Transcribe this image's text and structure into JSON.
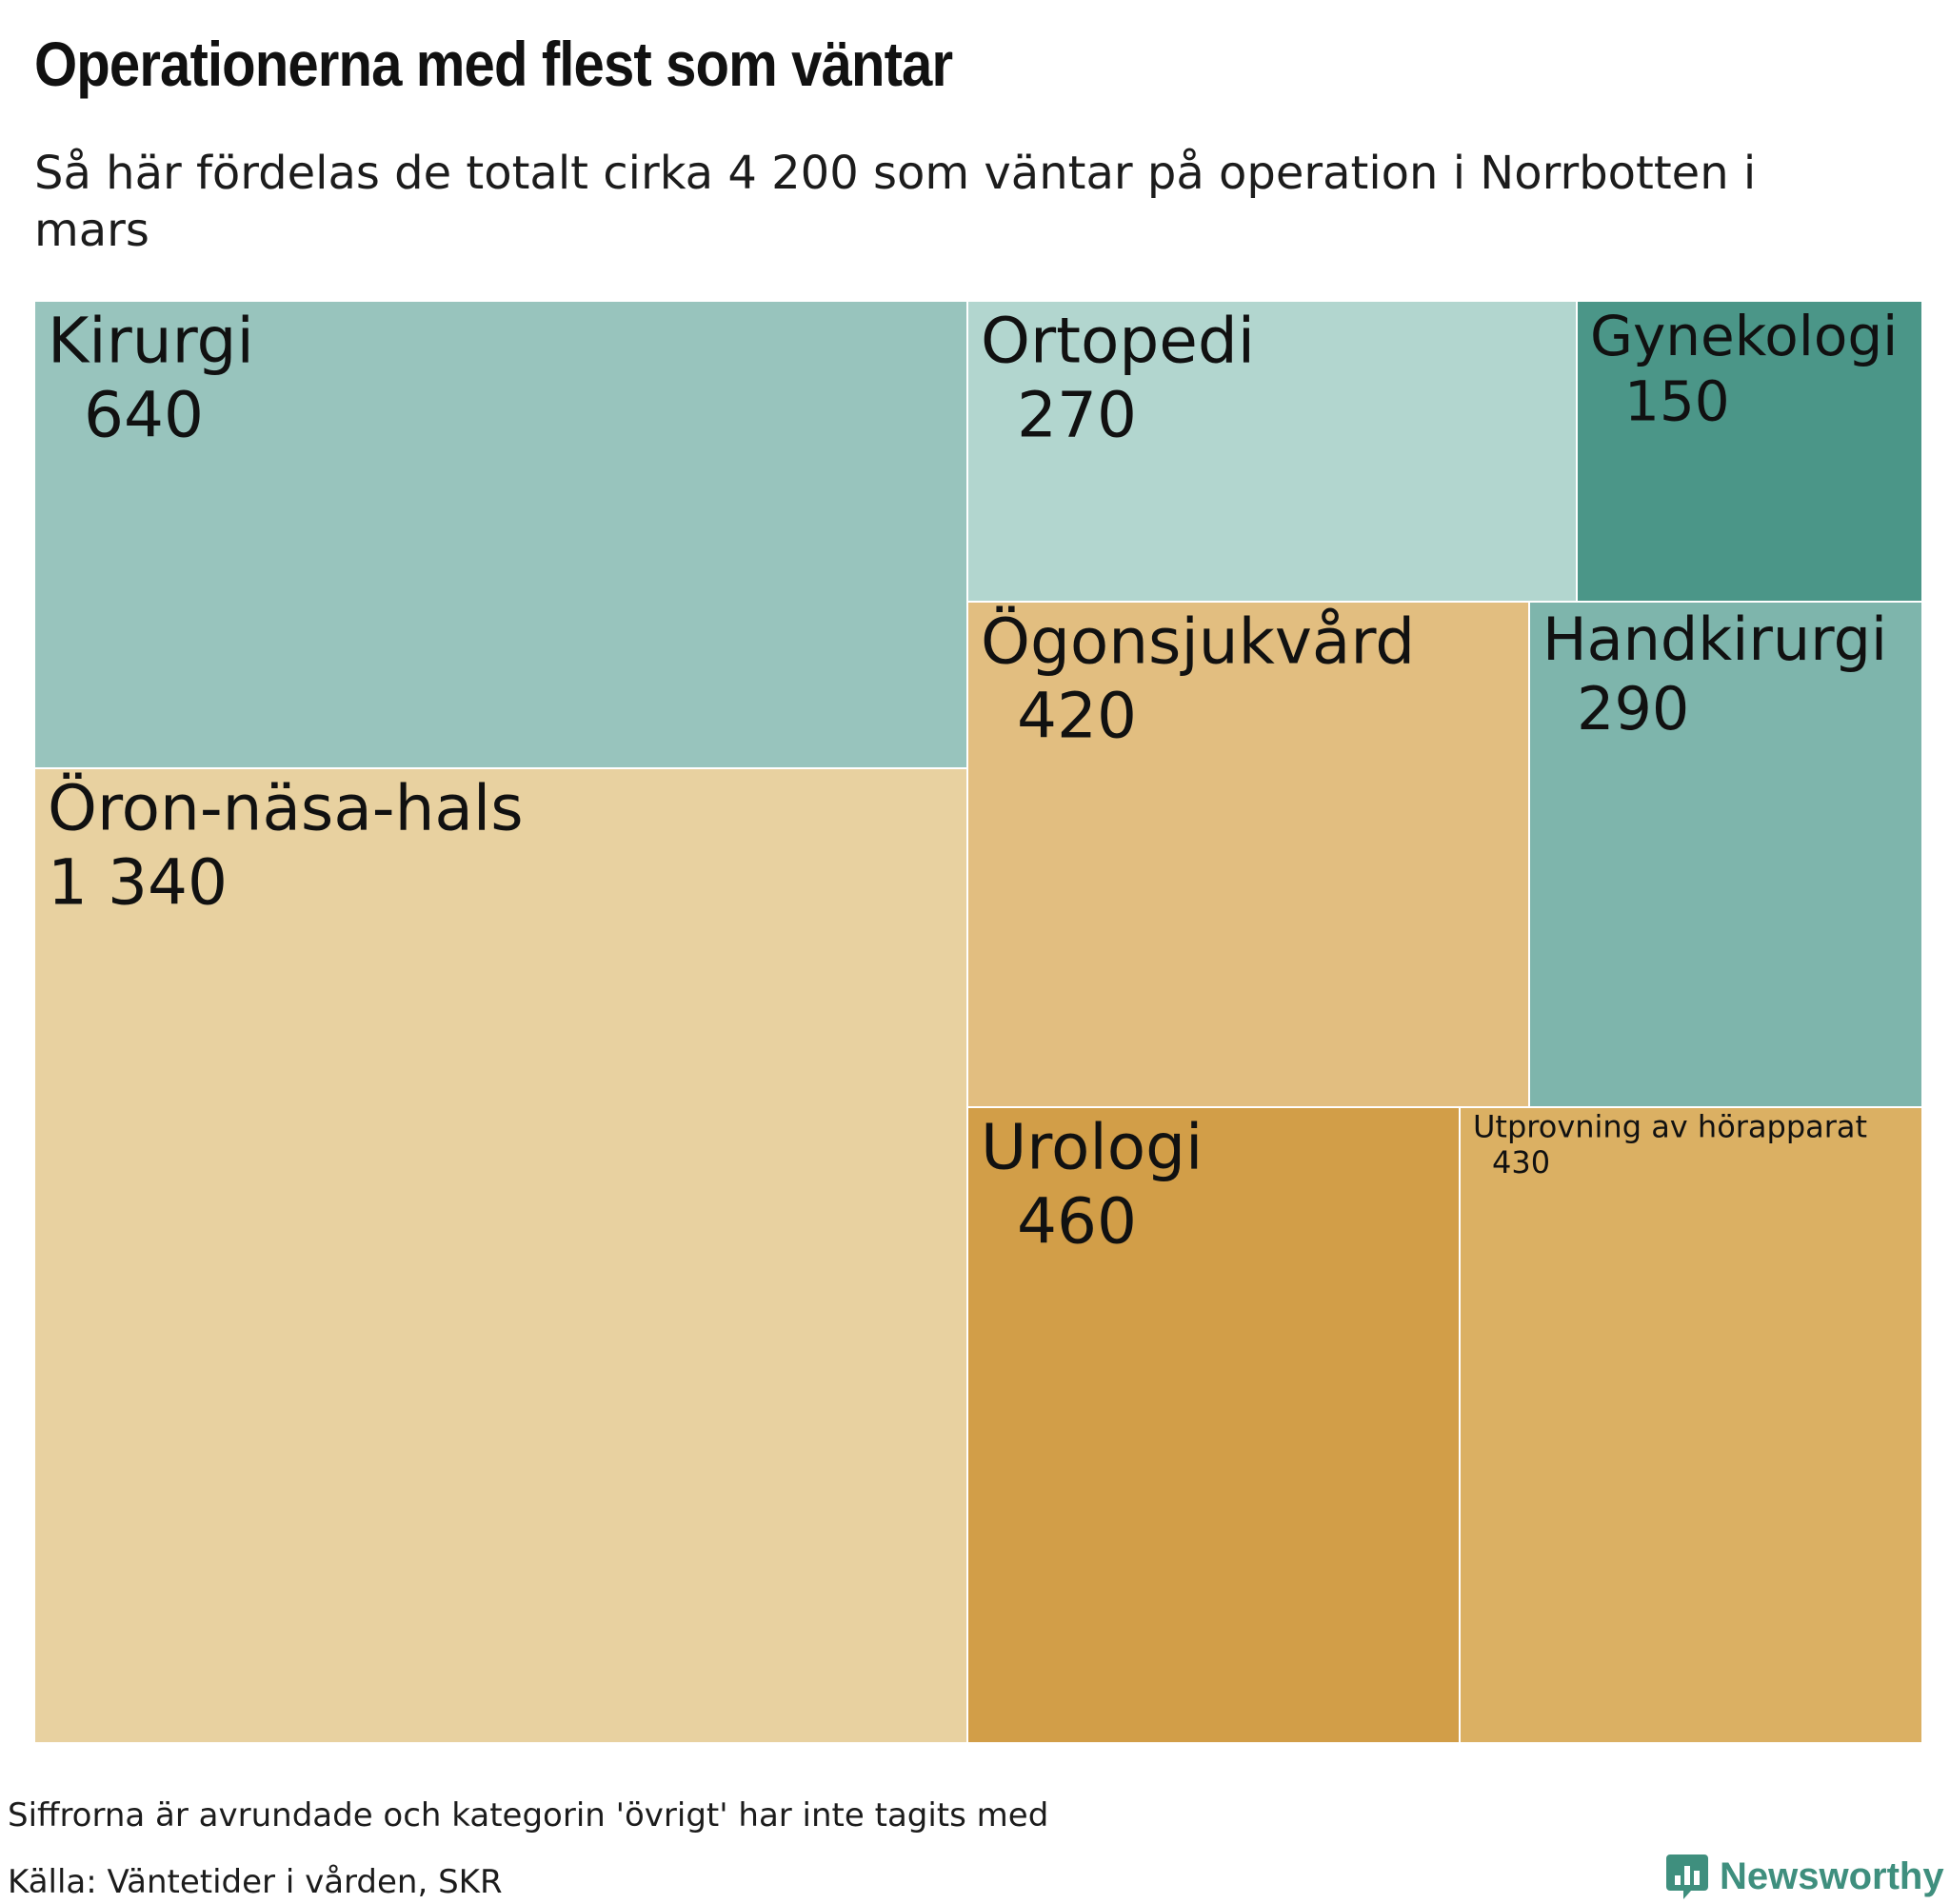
{
  "title": "Operationerna med flest som väntar",
  "subtitle": "Så här fördelas de totalt cirka 4 200 som väntar på operation i Norrbotten i mars",
  "note": "Siffrorna är avrundade och kategorin 'övrigt' har inte tagits med",
  "source": "Källa: Väntetider i vården, SKR",
  "brand": {
    "name": "Newsworthy",
    "icon": "newsworthy-logo-icon",
    "color": "#3f8f7e"
  },
  "chart_data": {
    "type": "treemap",
    "nodes": [
      {
        "label": "Öron-näsa-hals",
        "value_label": "1 340",
        "value": 1340,
        "color": "#e8d1a0"
      },
      {
        "label": "Kirurgi",
        "value_label": "640",
        "value": 640,
        "color": "#98c4bd"
      },
      {
        "label": "Urologi",
        "value_label": "460",
        "value": 460,
        "color": "#d29e48"
      },
      {
        "label": "Utprovning av hörapparat",
        "value_label": "430",
        "value": 430,
        "color": "#dbb063"
      },
      {
        "label": "Ögonsjukvård",
        "value_label": "420",
        "value": 420,
        "color": "#e2be80"
      },
      {
        "label": "Handkirurgi",
        "value_label": "290",
        "value": 290,
        "color": "#7eb5ac"
      },
      {
        "label": "Ortopedi",
        "value_label": "270",
        "value": 270,
        "color": "#b2d6cf"
      },
      {
        "label": "Gynekologi",
        "value_label": "150",
        "value": 150,
        "color": "#4b9688"
      }
    ]
  }
}
